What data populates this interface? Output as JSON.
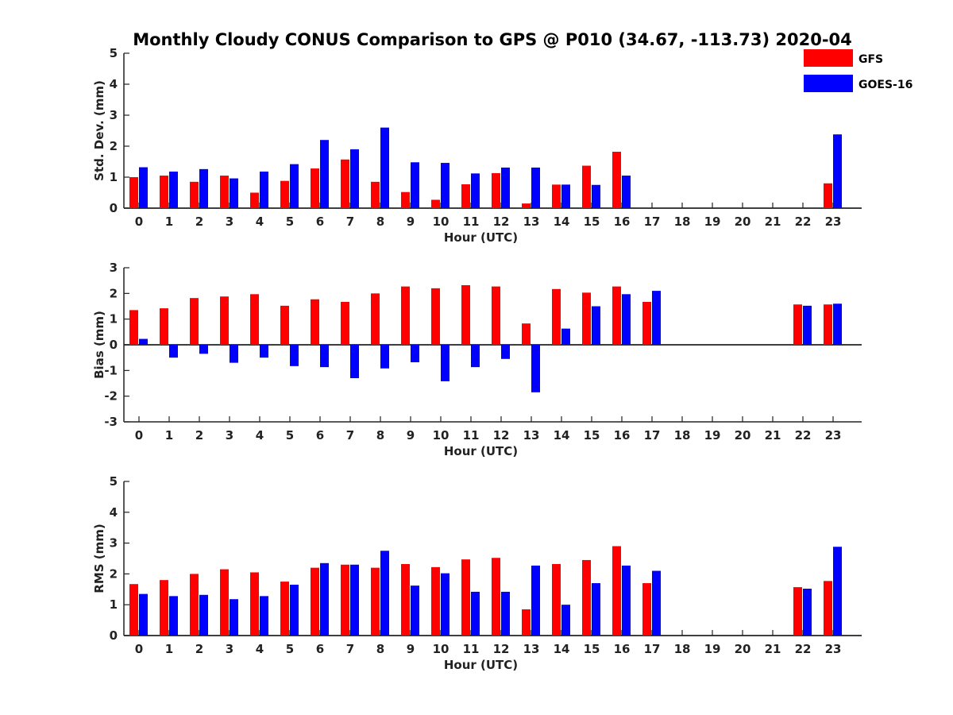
{
  "title": "Monthly Cloudy CONUS Comparison to GPS @ P010 (34.67, -113.73) 2020-04",
  "legend": [
    {
      "name": "GFS",
      "color": "#ff0000"
    },
    {
      "name": "GOES-16",
      "color": "#0000ff"
    }
  ],
  "chart_data": [
    {
      "type": "bar",
      "categories": [
        "0",
        "1",
        "2",
        "3",
        "4",
        "5",
        "6",
        "7",
        "8",
        "9",
        "10",
        "11",
        "12",
        "13",
        "14",
        "15",
        "16",
        "17",
        "18",
        "19",
        "20",
        "21",
        "22",
        "23"
      ],
      "xlabel": "Hour (UTC)",
      "ylabel": "Std. Dev. (mm)",
      "ylim": [
        0,
        5
      ],
      "yticks": [
        "0",
        "1",
        "2",
        "3",
        "4",
        "5"
      ],
      "series": [
        {
          "name": "GFS",
          "color": "#ff0000",
          "values": [
            1.0,
            1.05,
            0.85,
            1.05,
            0.5,
            0.88,
            1.28,
            1.57,
            0.85,
            0.52,
            0.27,
            0.77,
            1.13,
            0.15,
            0.76,
            1.37,
            1.82,
            null,
            null,
            null,
            null,
            null,
            null,
            0.8
          ]
        },
        {
          "name": "GOES-16",
          "color": "#0000ff",
          "values": [
            1.32,
            1.18,
            1.26,
            0.96,
            1.18,
            1.42,
            2.2,
            1.9,
            2.6,
            1.48,
            1.46,
            1.12,
            1.31,
            1.31,
            0.76,
            0.75,
            1.05,
            null,
            null,
            null,
            null,
            null,
            null,
            2.38
          ]
        }
      ]
    },
    {
      "type": "bar",
      "categories": [
        "0",
        "1",
        "2",
        "3",
        "4",
        "5",
        "6",
        "7",
        "8",
        "9",
        "10",
        "11",
        "12",
        "13",
        "14",
        "15",
        "16",
        "17",
        "18",
        "19",
        "20",
        "21",
        "22",
        "23"
      ],
      "xlabel": "Hour (UTC)",
      "ylabel": "Bias (mm)",
      "ylim": [
        -3,
        3
      ],
      "yticks": [
        "-3",
        "-2",
        "-1",
        "0",
        "1",
        "2",
        "3"
      ],
      "series": [
        {
          "name": "GFS",
          "color": "#ff0000",
          "values": [
            1.35,
            1.42,
            1.82,
            1.88,
            1.97,
            1.52,
            1.77,
            1.67,
            2.0,
            2.27,
            2.2,
            2.32,
            2.27,
            0.83,
            2.17,
            2.03,
            2.27,
            1.67,
            null,
            null,
            null,
            null,
            1.57,
            1.57
          ]
        },
        {
          "name": "GOES-16",
          "color": "#0000ff",
          "values": [
            0.23,
            -0.5,
            -0.35,
            -0.7,
            -0.5,
            -0.83,
            -0.87,
            -1.3,
            -0.92,
            -0.68,
            -1.42,
            -0.87,
            -0.55,
            -1.85,
            0.63,
            1.5,
            1.97,
            2.1,
            null,
            null,
            null,
            null,
            1.52,
            1.6
          ]
        }
      ]
    },
    {
      "type": "bar",
      "categories": [
        "0",
        "1",
        "2",
        "3",
        "4",
        "5",
        "6",
        "7",
        "8",
        "9",
        "10",
        "11",
        "12",
        "13",
        "14",
        "15",
        "16",
        "17",
        "18",
        "19",
        "20",
        "21",
        "22",
        "23"
      ],
      "xlabel": "Hour (UTC)",
      "ylabel": "RMS (mm)",
      "ylim": [
        0,
        5
      ],
      "yticks": [
        "0",
        "1",
        "2",
        "3",
        "4",
        "5"
      ],
      "series": [
        {
          "name": "GFS",
          "color": "#ff0000",
          "values": [
            1.67,
            1.8,
            2.0,
            2.15,
            2.05,
            1.75,
            2.2,
            2.3,
            2.2,
            2.32,
            2.22,
            2.47,
            2.52,
            0.85,
            2.32,
            2.45,
            2.9,
            1.7,
            null,
            null,
            null,
            null,
            1.57,
            1.77
          ]
        },
        {
          "name": "GOES-16",
          "color": "#0000ff",
          "values": [
            1.35,
            1.28,
            1.32,
            1.18,
            1.28,
            1.65,
            2.35,
            2.3,
            2.75,
            1.62,
            2.02,
            1.42,
            1.42,
            2.27,
            1.0,
            1.7,
            2.27,
            2.1,
            null,
            null,
            null,
            null,
            1.52,
            2.88
          ]
        }
      ]
    }
  ]
}
